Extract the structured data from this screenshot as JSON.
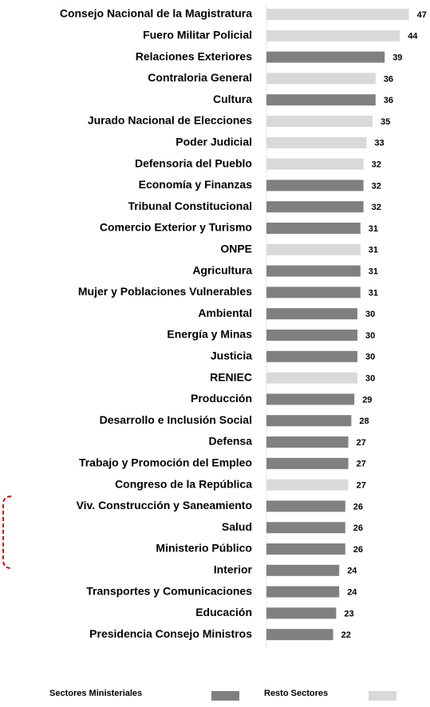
{
  "chart_data": {
    "type": "bar",
    "orientation": "horizontal",
    "categories": [
      "Consejo Nacional de la Magistratura",
      "Fuero Militar Policial",
      "Relaciones Exteriores",
      "Contraloria General",
      "Cultura",
      "Jurado Nacional de Elecciones",
      "Poder Judicial",
      "Defensoria del Pueblo",
      "Economía y Finanzas",
      "Tribunal Constitucional",
      "Comercio Exterior y Turismo",
      "ONPE",
      "Agricultura",
      "Mujer y Poblaciones Vulnerables",
      "Ambiental",
      "Energía y Minas",
      "Justicia",
      "RENIEC",
      "Producción",
      "Desarrollo e Inclusión Social",
      "Defensa",
      "Trabajo y Promoción del Empleo",
      "Congreso de la República",
      "Viv. Construcción y Saneamiento",
      "Salud",
      "Ministerio Público",
      "Interior",
      "Transportes y Comunicaciones",
      "Educación",
      "Presidencia Consejo Ministros"
    ],
    "series": [
      {
        "name": "Sectores Ministeriales",
        "color": "#808080",
        "values": [
          null,
          null,
          39,
          null,
          36,
          null,
          null,
          null,
          32,
          32,
          31,
          null,
          31,
          31,
          30,
          30,
          30,
          null,
          29,
          28,
          27,
          27,
          null,
          26,
          26,
          26,
          24,
          24,
          23,
          22
        ]
      },
      {
        "name": "Resto Sectores",
        "color": "#d9d9d9",
        "values": [
          47,
          44,
          null,
          36,
          null,
          35,
          33,
          32,
          null,
          null,
          null,
          31,
          null,
          null,
          null,
          null,
          null,
          30,
          null,
          null,
          null,
          null,
          27,
          null,
          null,
          null,
          null,
          null,
          null,
          null
        ]
      }
    ]
  }
}
